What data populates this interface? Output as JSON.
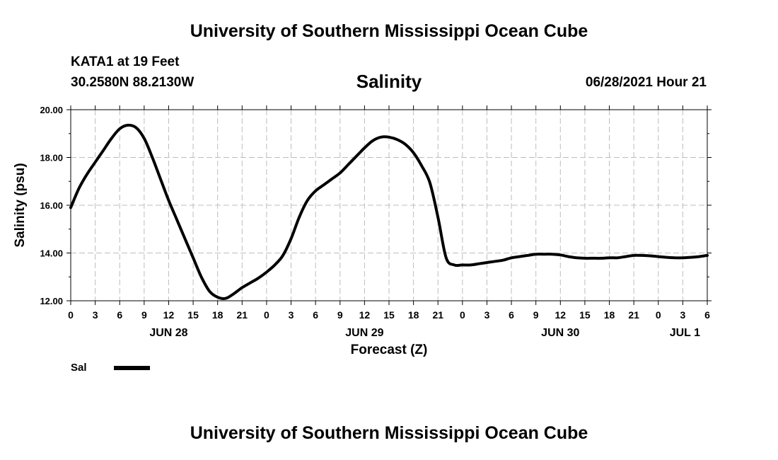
{
  "header": {
    "title": "University of Southern Mississippi Ocean Cube",
    "station": "KATA1 at 19 Feet",
    "coordinates": "30.2580N  88.2130W",
    "datetime": "06/28/2021 Hour 21"
  },
  "footer": {
    "title": "University of Southern Mississippi Ocean Cube"
  },
  "chart_data": {
    "type": "line",
    "title": "Salinity",
    "xlabel": "Forecast (Z)",
    "ylabel": "Salinity (psu)",
    "x_unit": "forecast hour",
    "xlim": [
      0,
      78
    ],
    "ylim": [
      12,
      20
    ],
    "yticks": [
      "12.00",
      "14.00",
      "16.00",
      "18.00",
      "20.00"
    ],
    "xticks": [
      "0",
      "3",
      "6",
      "9",
      "12",
      "15",
      "18",
      "21",
      "0",
      "3",
      "6",
      "9",
      "12",
      "15",
      "18",
      "21",
      "0",
      "3",
      "6",
      "9",
      "12",
      "15",
      "18",
      "21",
      "0",
      "3",
      "6"
    ],
    "day_labels": [
      {
        "label": "JUN 28",
        "x": 12
      },
      {
        "label": "JUN 29",
        "x": 36
      },
      {
        "label": "JUN 30",
        "x": 60
      },
      {
        "label": "JUL 1",
        "x": 78
      }
    ],
    "grid": true,
    "legend": {
      "placement": "bottom-left",
      "entries": [
        "Sal"
      ]
    },
    "series": [
      {
        "name": "Sal",
        "color": "#000000",
        "x": [
          0,
          1,
          2,
          3,
          4,
          5,
          6,
          7,
          8,
          9,
          10,
          11,
          12,
          13,
          14,
          15,
          16,
          17,
          18,
          19,
          20,
          21,
          22,
          23,
          24,
          25,
          26,
          27,
          28,
          29,
          30,
          31,
          32,
          33,
          34,
          35,
          36,
          37,
          38,
          39,
          40,
          41,
          42,
          43,
          44,
          45,
          46,
          47,
          48,
          49,
          50,
          51,
          52,
          53,
          54,
          55,
          56,
          57,
          58,
          59,
          60,
          61,
          62,
          63,
          64,
          65,
          66,
          67,
          68,
          69,
          70,
          71,
          72,
          73,
          74,
          75,
          76,
          77,
          78
        ],
        "values": [
          15.9,
          16.7,
          17.3,
          17.8,
          18.3,
          18.8,
          19.2,
          19.35,
          19.25,
          18.8,
          18.0,
          17.1,
          16.2,
          15.4,
          14.6,
          13.8,
          13.0,
          12.4,
          12.15,
          12.1,
          12.3,
          12.55,
          12.75,
          12.95,
          13.2,
          13.5,
          13.9,
          14.6,
          15.5,
          16.2,
          16.6,
          16.85,
          17.1,
          17.35,
          17.7,
          18.05,
          18.4,
          18.7,
          18.85,
          18.85,
          18.75,
          18.55,
          18.2,
          17.65,
          16.95,
          15.5,
          13.8,
          13.5,
          13.5,
          13.5,
          13.55,
          13.6,
          13.65,
          13.7,
          13.8,
          13.85,
          13.9,
          13.95,
          13.95,
          13.95,
          13.92,
          13.85,
          13.8,
          13.78,
          13.78,
          13.78,
          13.8,
          13.8,
          13.85,
          13.9,
          13.9,
          13.88,
          13.85,
          13.82,
          13.8,
          13.8,
          13.82,
          13.85,
          13.9
        ]
      }
    ]
  }
}
